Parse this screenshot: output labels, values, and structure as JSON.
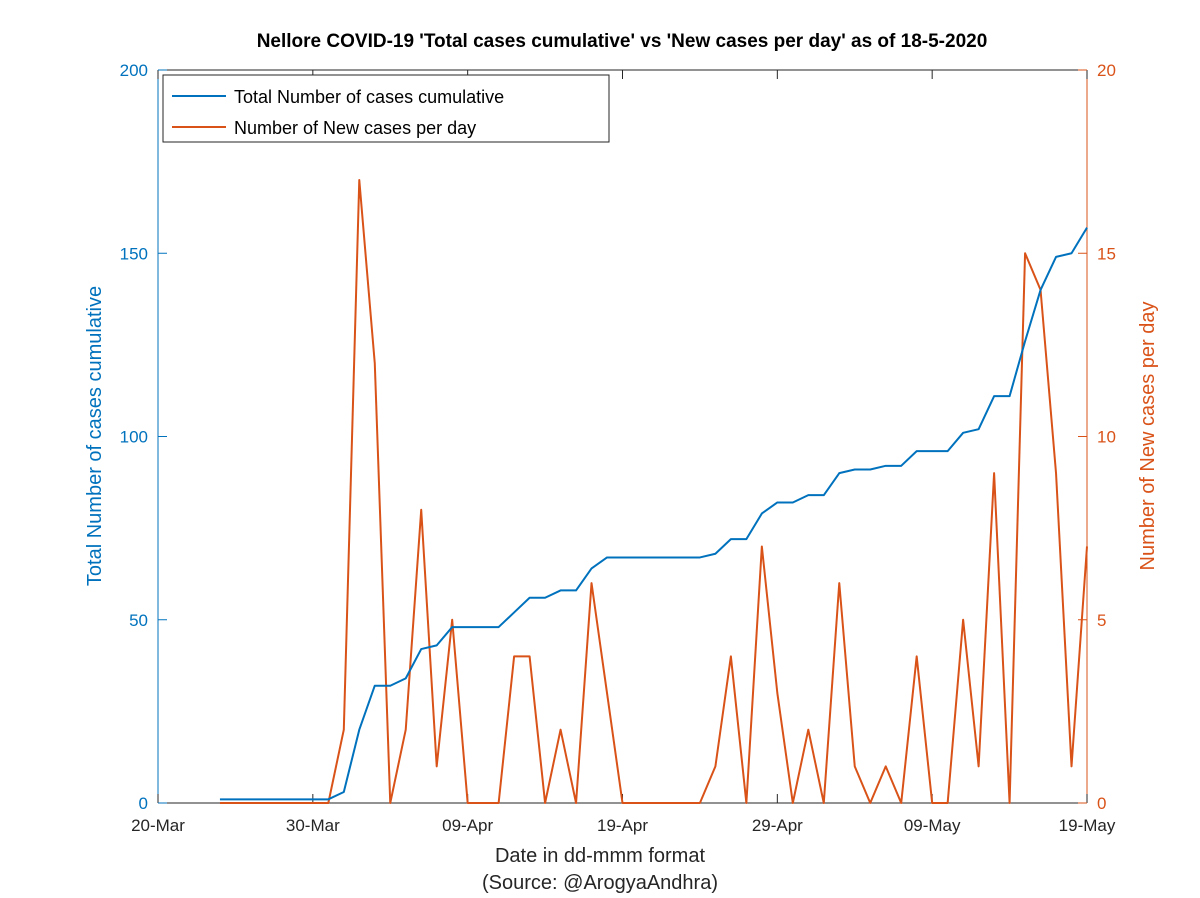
{
  "chart_data": {
    "type": "line",
    "title": "Nellore COVID-19 'Total cases cumulative' vs 'New cases per day' as of 18-5-2020",
    "xlabel": "Date in dd-mmm format",
    "xlabel_source": "(Source: @ArogyaAndhra)",
    "ylabel_left": "Total Number of cases cumulative",
    "ylabel_right": "Number of New cases per day",
    "xlim": [
      "2020-03-20",
      "2020-05-19"
    ],
    "ylim_left": [
      0,
      200
    ],
    "ylim_right": [
      0,
      20
    ],
    "x_ticks": [
      "20-Mar",
      "30-Mar",
      "09-Apr",
      "19-Apr",
      "29-Apr",
      "09-May",
      "19-May"
    ],
    "y_ticks_left": [
      "0",
      "50",
      "100",
      "150",
      "200"
    ],
    "y_ticks_right": [
      "0",
      "5",
      "10",
      "15",
      "20"
    ],
    "legend_position": "top-left",
    "grid": false,
    "colors": {
      "cumulative": "#0072bd",
      "new": "#d95319",
      "axis": "#262626"
    },
    "x": [
      "2020-03-24",
      "2020-03-25",
      "2020-03-26",
      "2020-03-27",
      "2020-03-28",
      "2020-03-29",
      "2020-03-30",
      "2020-03-31",
      "2020-04-01",
      "2020-04-02",
      "2020-04-03",
      "2020-04-04",
      "2020-04-05",
      "2020-04-06",
      "2020-04-07",
      "2020-04-08",
      "2020-04-09",
      "2020-04-10",
      "2020-04-11",
      "2020-04-12",
      "2020-04-13",
      "2020-04-14",
      "2020-04-15",
      "2020-04-16",
      "2020-04-17",
      "2020-04-18",
      "2020-04-19",
      "2020-04-20",
      "2020-04-21",
      "2020-04-22",
      "2020-04-23",
      "2020-04-24",
      "2020-04-25",
      "2020-04-26",
      "2020-04-27",
      "2020-04-28",
      "2020-04-29",
      "2020-04-30",
      "2020-05-01",
      "2020-05-02",
      "2020-05-03",
      "2020-05-04",
      "2020-05-05",
      "2020-05-06",
      "2020-05-07",
      "2020-05-08",
      "2020-05-09",
      "2020-05-10",
      "2020-05-11",
      "2020-05-12",
      "2020-05-13",
      "2020-05-14",
      "2020-05-15",
      "2020-05-16",
      "2020-05-17",
      "2020-05-18"
    ],
    "series": [
      {
        "name": "Total Number of cases cumulative",
        "axis": "left",
        "values": [
          1,
          1,
          1,
          1,
          1,
          1,
          1,
          1,
          3,
          20,
          32,
          32,
          34,
          42,
          43,
          48,
          48,
          48,
          48,
          52,
          56,
          56,
          58,
          58,
          64,
          67,
          67,
          67,
          67,
          67,
          67,
          67,
          68,
          72,
          72,
          79,
          82,
          82,
          84,
          84,
          90,
          91,
          91,
          92,
          92,
          96,
          96,
          96,
          101,
          102,
          111,
          111,
          126,
          140,
          149,
          150
        ]
      },
      {
        "name": "Number of New cases per day",
        "axis": "right",
        "values": [
          0,
          0,
          0,
          0,
          0,
          0,
          0,
          0,
          2,
          17,
          12,
          0,
          2,
          8,
          1,
          5,
          0,
          0,
          0,
          4,
          4,
          0,
          2,
          0,
          6,
          3,
          0,
          0,
          0,
          0,
          0,
          0,
          1,
          4,
          0,
          7,
          3,
          0,
          2,
          0,
          6,
          1,
          0,
          1,
          0,
          4,
          0,
          0,
          5,
          1,
          9,
          0,
          15,
          14,
          9,
          1
        ]
      }
    ],
    "final_point": {
      "x": "2020-05-19",
      "cumulative": 157,
      "new": 7
    }
  }
}
